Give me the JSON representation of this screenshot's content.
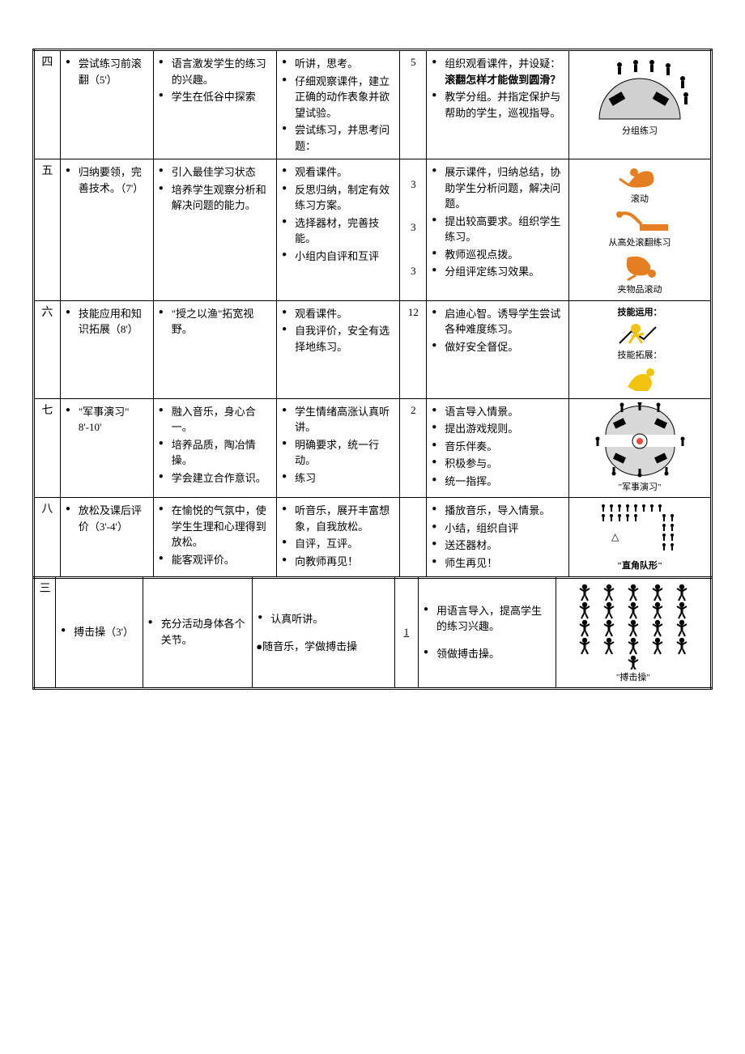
{
  "rows": {
    "r4": {
      "seq": "四",
      "col2": [
        "尝试练习前滚翻（5'）"
      ],
      "col3": [
        "语言激发学生的练习的兴趣。",
        "学生在低谷中探索"
      ],
      "col4": [
        "听讲，思考。",
        "仔细观察课件，建立正确的动作表象并欲望试验。",
        "尝试练习，并思考问题："
      ],
      "time": "5",
      "col6": [
        "组织观看课件，并设疑：<b>滚翻怎样才能做到圆滑？</b>",
        "教学分组。并指定保护与帮助的学生，巡视指导。"
      ],
      "caption": "分组练习"
    },
    "r5": {
      "seq": "五",
      "col2": [
        "归纳要领，完善技术。（7'）"
      ],
      "col3": [
        "引入最佳学习状态",
        "培养学生观察分析和解决问题的能力。"
      ],
      "col4": [
        "观看课件。",
        "反思归纳，制定有效练习方案。",
        "选择器材，完善技能。",
        "小组内自评和互评"
      ],
      "times": [
        "3",
        "3",
        "3"
      ],
      "col6": [
        "展示课件，归纳总结，协助学生分析问题，解决问题。",
        "提出较高要求。组织学生练习。",
        "教师巡视点拨。",
        "分组评定练习效果。"
      ],
      "captions": [
        "滚动",
        "从高处滚翻练习",
        "夹物品滚动"
      ]
    },
    "r6": {
      "seq": "六",
      "col2": [
        "技能应用和知识拓展（8'）"
      ],
      "col3": [
        "\"授之以渔\"拓宽视野。"
      ],
      "col4": [
        "观看课件。",
        "自我评价，安全有选择地练习。"
      ],
      "time": "12",
      "col6": [
        "启迪心智。诱导学生尝试各种难度练习。",
        "做好安全督促。"
      ],
      "captions_top": "技能运用：",
      "captions_mid": "技能拓展：",
      "captions": []
    },
    "r7": {
      "seq": "七",
      "col2": [
        "\"军事演习\" 8'-10'"
      ],
      "col3": [
        "融入音乐，身心合一。",
        "培养品质，陶冶情操。",
        "学会建立合作意识。"
      ],
      "col4": [
        "学生情绪高涨认真听讲。",
        "明确要求，统一行动。",
        "练习"
      ],
      "time": "2",
      "col6": [
        "语言导入情景。",
        "提出游戏规则。",
        "音乐伴奏。",
        "积极参与。",
        "统一指挥。"
      ],
      "caption": "\"军事演习\""
    },
    "r8": {
      "seq": "八",
      "col2": [
        "放松及课后评价（3'-4'）"
      ],
      "col3": [
        "在愉悦的气氛中，使学生生理和心理得到放松。",
        "能客观评价。"
      ],
      "col4": [
        "听音乐，展开丰富想象，自我放松。",
        "自评，互评。",
        "向教师再见！"
      ],
      "time": "",
      "col6": [
        "播放音乐，导入情景。",
        "小结，组织自评",
        "送还器材。",
        "师生再见！"
      ],
      "caption": "\"直角队形\""
    },
    "r3": {
      "seq": "三",
      "col2": [
        "搏击操（3'）"
      ],
      "col3": [
        "充分活动身体各个关节。"
      ],
      "col4_a": [
        "认真听讲。"
      ],
      "col4_b": "随音乐，学做搏击操",
      "time": "1",
      "col6": [
        "用语言导入，提高学生的练习兴趣。",
        "领做搏击操。"
      ],
      "caption": "\"搏击操\""
    }
  }
}
